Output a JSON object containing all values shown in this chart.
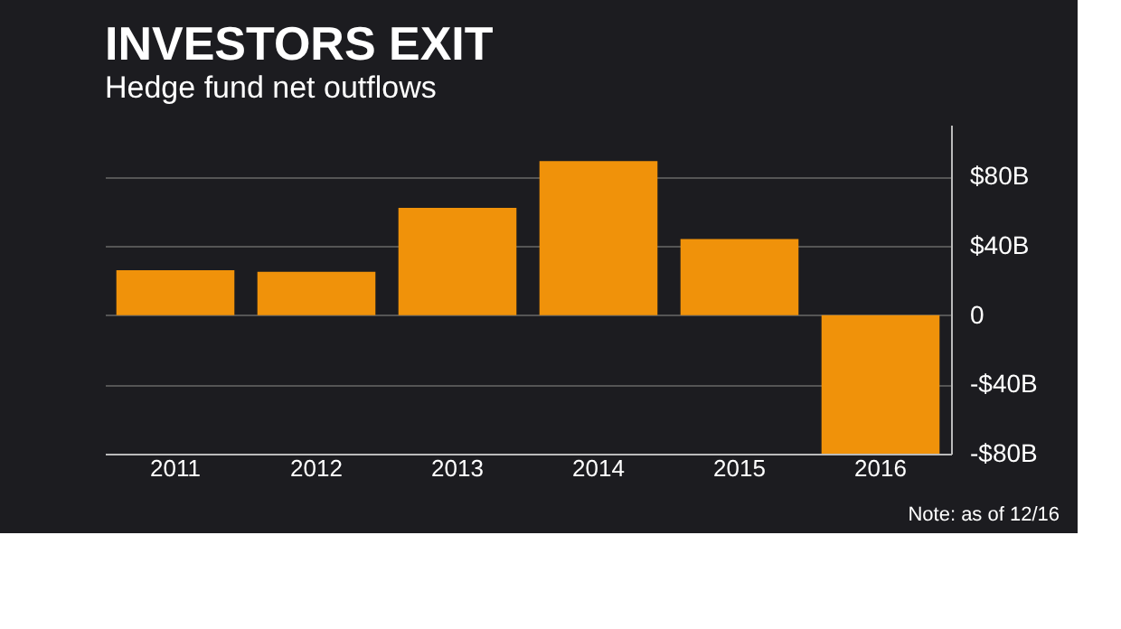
{
  "chart_data": {
    "type": "bar",
    "title": "INVESTORS EXIT",
    "subtitle": "Hedge fund net outflows",
    "categories": [
      "2011",
      "2012",
      "2013",
      "2014",
      "2015",
      "2016"
    ],
    "series": [
      {
        "color": "#f0920a",
        "values": [
          26,
          25,
          62,
          89,
          44,
          -80
        ]
      }
    ],
    "ylim": [
      -80,
      110
    ],
    "yticks": [
      {
        "value": -80,
        "label": "-$80B"
      },
      {
        "value": -40,
        "label": "-$40B"
      },
      0,
      {
        "value": 40,
        "label": "$40B"
      },
      {
        "value": 80,
        "label": "$80B"
      }
    ],
    "grid": "y",
    "legend": false,
    "annotations": [
      "Note: as of 12/16"
    ]
  }
}
